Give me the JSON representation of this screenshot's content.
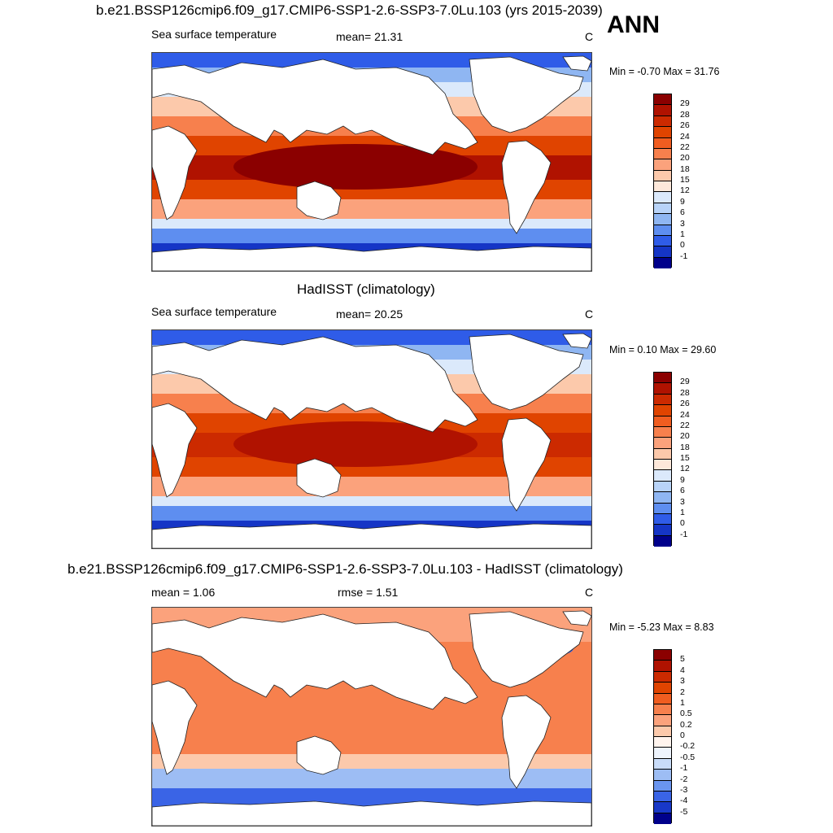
{
  "season": "ANN",
  "panels": [
    {
      "title": "b.e21.BSSP126cmip6.f09_g17.CMIP6-SSP1-2.6-SSP3-7.0Lu.103 (yrs 2015-2039)",
      "left_label": "Sea surface temperature",
      "center_label": "mean=  21.31",
      "units": "C",
      "minmax": "Min =  -0.70 Max =  31.76",
      "colorbar_labels": [
        "29",
        "28",
        "26",
        "24",
        "22",
        "20",
        "18",
        "15",
        "12",
        "9",
        "6",
        "3",
        "1",
        "0",
        "-1"
      ],
      "colorbar_colors": [
        "#8b0000",
        "#b01200",
        "#cc2a00",
        "#e04400",
        "#f05d20",
        "#f7804d",
        "#fba27c",
        "#fcc9ab",
        "#fde8da",
        "#dbe9fb",
        "#b8d3f8",
        "#8fb6f2",
        "#5e8ef0",
        "#2f5ce8",
        "#1535c6",
        "#00008b"
      ]
    },
    {
      "title": "HadISST (climatology)",
      "left_label": "Sea surface temperature",
      "center_label": "mean=  20.25",
      "units": "C",
      "minmax": "Min =   0.10 Max =  29.60",
      "colorbar_labels": [
        "29",
        "28",
        "26",
        "24",
        "22",
        "20",
        "18",
        "15",
        "12",
        "9",
        "6",
        "3",
        "1",
        "0",
        "-1"
      ],
      "colorbar_colors": [
        "#8b0000",
        "#b01200",
        "#cc2a00",
        "#e04400",
        "#f05d20",
        "#f7804d",
        "#fba27c",
        "#fcc9ab",
        "#fde8da",
        "#dbe9fb",
        "#b8d3f8",
        "#8fb6f2",
        "#5e8ef0",
        "#2f5ce8",
        "#1535c6",
        "#00008b"
      ]
    },
    {
      "title": "b.e21.BSSP126cmip6.f09_g17.CMIP6-SSP1-2.6-SSP3-7.0Lu.103 - HadISST (climatology)",
      "left_label": "mean =   1.06",
      "center_label": "rmse =   1.51",
      "units": "C",
      "minmax": "Min =  -5.23 Max =   8.83",
      "colorbar_labels": [
        "5",
        "4",
        "3",
        "2",
        "1",
        "0.5",
        "0.2",
        "0",
        "-0.2",
        "-0.5",
        "-1",
        "-2",
        "-3",
        "-4",
        "-5"
      ],
      "colorbar_colors": [
        "#8b0000",
        "#b01200",
        "#cc2a00",
        "#e04400",
        "#f05d20",
        "#f7804d",
        "#fba27c",
        "#fcc9ab",
        "#fff4ee",
        "#eef4fd",
        "#c9dcf9",
        "#9dbdf4",
        "#6a95ef",
        "#3a64e6",
        "#1838c8",
        "#00008b"
      ]
    }
  ]
}
